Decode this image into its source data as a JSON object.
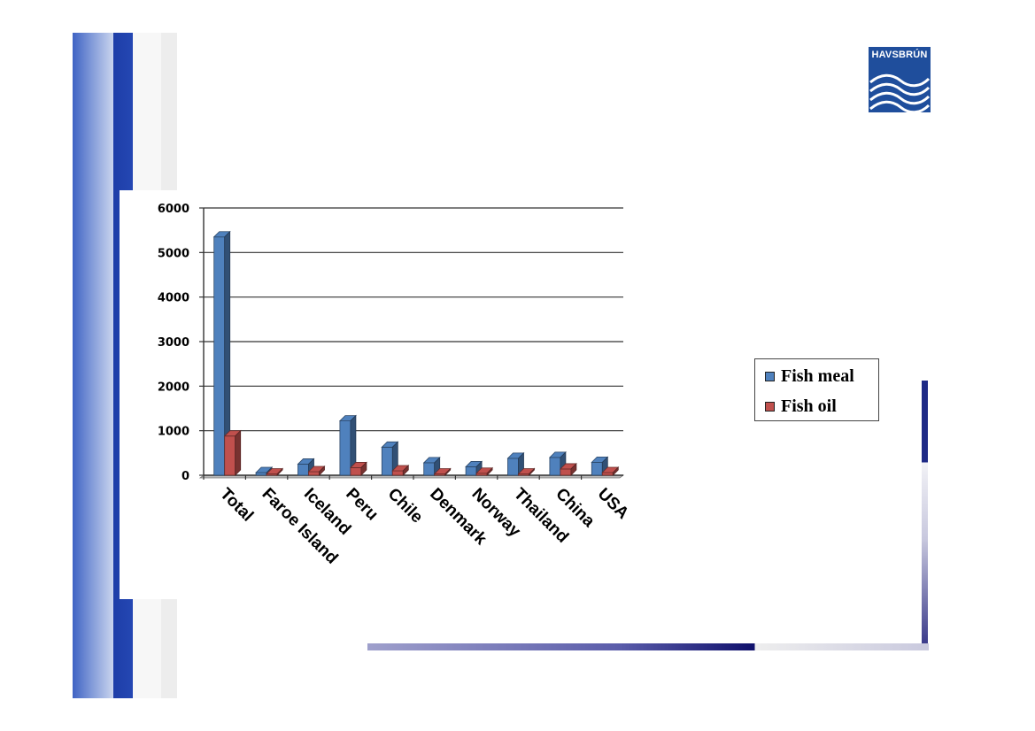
{
  "logo": {
    "text": "HAVSBRÚN",
    "color": "#1f4e9c"
  },
  "legend": {
    "items": [
      {
        "label": "Fish meal",
        "color": "#4f81bd"
      },
      {
        "label": "Fish oil",
        "color": "#c0504d"
      }
    ]
  },
  "chart_data": {
    "type": "bar",
    "categories": [
      "Total",
      "Faroe Island",
      "Iceland",
      "Peru",
      "Chile",
      "Denmark",
      "Norway",
      "Thailand",
      "China",
      "USA"
    ],
    "series": [
      {
        "name": "Fish meal",
        "color": "#4f81bd",
        "values": [
          5350,
          60,
          250,
          1220,
          630,
          280,
          190,
          380,
          400,
          290
        ]
      },
      {
        "name": "Fish oil",
        "color": "#c0504d",
        "values": [
          880,
          10,
          80,
          170,
          100,
          20,
          45,
          0,
          140,
          60
        ]
      }
    ],
    "yticks": [
      "0",
      "1000",
      "2000",
      "3000",
      "4000",
      "5000",
      "6000"
    ],
    "ylim": [
      0,
      6000
    ],
    "style": "3d-column",
    "grid": true,
    "legend": "right"
  }
}
